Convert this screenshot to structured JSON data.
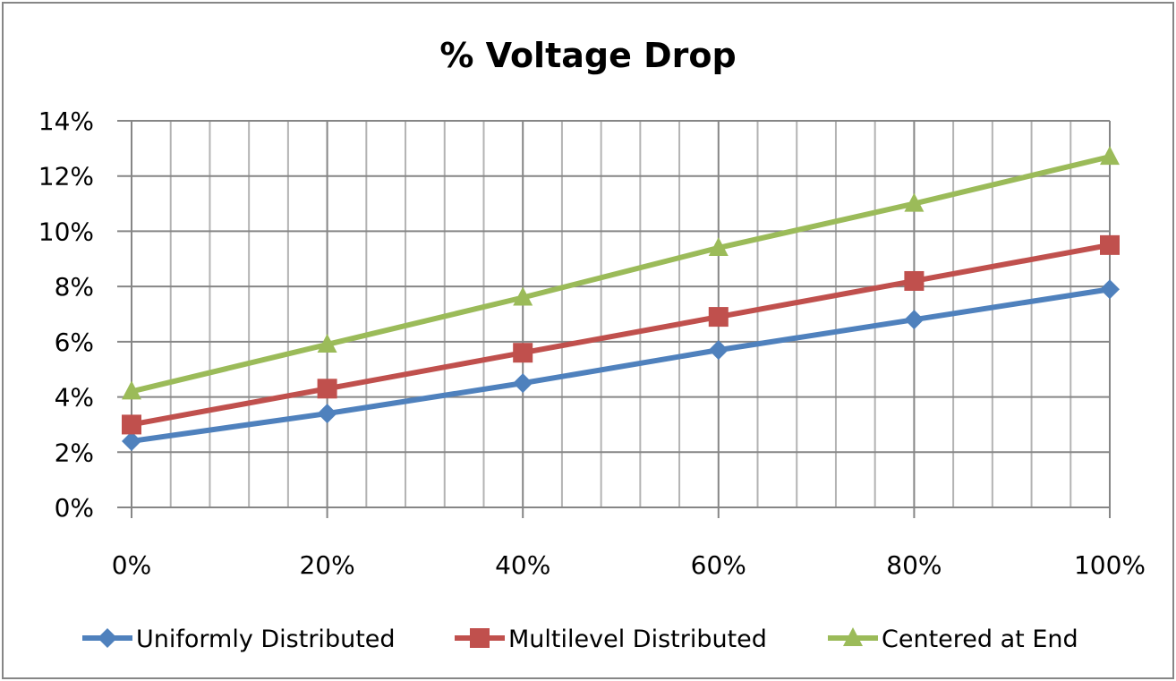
{
  "chart_data": {
    "type": "line",
    "title": "% Voltage Drop",
    "xlabel": "",
    "ylabel": "",
    "categories": [
      "0%",
      "20%",
      "40%",
      "60%",
      "80%",
      "100%"
    ],
    "x": [
      0,
      20,
      40,
      60,
      80,
      100
    ],
    "xlim": [
      0,
      100
    ],
    "ylim": [
      0,
      14
    ],
    "y_ticks": [
      0,
      2,
      4,
      6,
      8,
      10,
      12,
      14
    ],
    "y_tick_labels": [
      "0%",
      "2%",
      "4%",
      "6%",
      "8%",
      "10%",
      "12%",
      "14%"
    ],
    "grid": true,
    "legend_position": "bottom",
    "series": [
      {
        "name": "Uniformly Distributed",
        "color": "#4F81BD",
        "marker": "diamond",
        "values": [
          2.4,
          3.4,
          4.5,
          5.7,
          6.8,
          7.9
        ]
      },
      {
        "name": "Multilevel Distributed",
        "color": "#C0504D",
        "marker": "square",
        "values": [
          3.0,
          4.3,
          5.6,
          6.9,
          8.2,
          9.5
        ]
      },
      {
        "name": "Centered at End",
        "color": "#9BBB59",
        "marker": "triangle",
        "values": [
          4.2,
          5.9,
          7.6,
          9.4,
          11.0,
          12.7
        ]
      }
    ]
  }
}
